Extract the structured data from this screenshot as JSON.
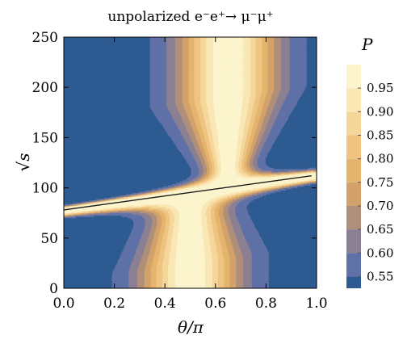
{
  "chart_data": {
    "type": "heatmap",
    "subtype": "filled-contour",
    "title": "unpolarized  e⁻e⁺→ μ⁻μ⁺",
    "xlabel": "θ/π",
    "ylabel": "√s",
    "xlim": [
      0.0,
      1.0
    ],
    "ylim": [
      0,
      250
    ],
    "xticks": [
      "0.0",
      "0.2",
      "0.4",
      "0.6",
      "0.8",
      "1.0"
    ],
    "xtick_values": [
      0.0,
      0.2,
      0.4,
      0.6,
      0.8,
      1.0
    ],
    "yticks": [
      "0",
      "50",
      "100",
      "150",
      "200",
      "250"
    ],
    "ytick_values": [
      0,
      50,
      100,
      150,
      200,
      250
    ],
    "colorbar": {
      "label": "P",
      "levels": [
        0.55,
        0.6,
        0.65,
        0.7,
        0.75,
        0.8,
        0.85,
        0.9,
        0.95
      ],
      "tick_labels": [
        "0.55",
        "0.60",
        "0.65",
        "0.70",
        "0.75",
        "0.80",
        "0.85",
        "0.90",
        "0.95"
      ],
      "range": [
        0.525,
        1.0
      ],
      "colors": [
        "#2e5a92",
        "#5f71a6",
        "#8b8093",
        "#b08f7a",
        "#d2a26a",
        "#e5b46d",
        "#efc481",
        "#f5d79b",
        "#f9e7b4",
        "#fbf4cd"
      ]
    },
    "features": {
      "lower_ridge_center_x": 0.5,
      "upper_ridge_center_x": 0.65,
      "focus_low": {
        "x": 0.0,
        "y": 78
      },
      "focus_high": {
        "x": 0.98,
        "y": 112
      }
    },
    "grid": false,
    "legend": "right"
  }
}
